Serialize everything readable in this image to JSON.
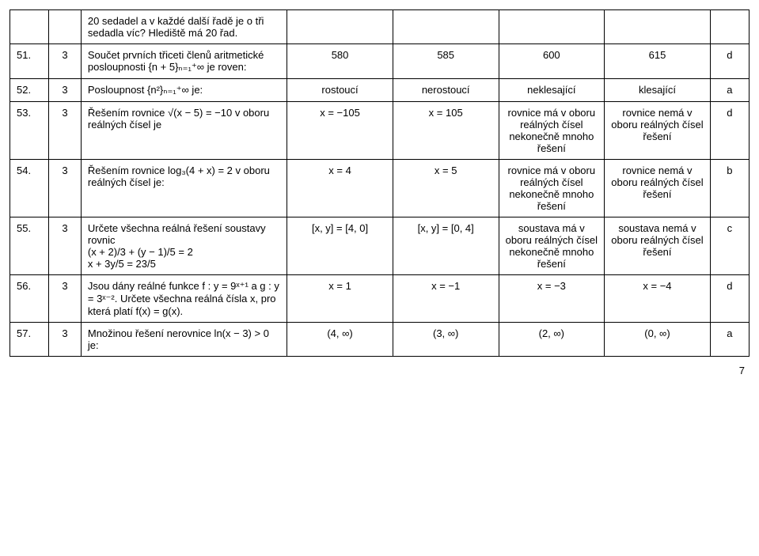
{
  "rows": [
    {
      "num": "",
      "pts": "",
      "question": "20 sedadel a v každé další řadě je o tři sedadla víc? Hlediště má 20 řad.",
      "a": "",
      "b": "",
      "c": "",
      "d": "",
      "ans": ""
    },
    {
      "num": "51.",
      "pts": "3",
      "question": "Součet prvních třiceti členů aritmetické posloupnosti {n + 5}ₙ₌₁⁺∞ je roven:",
      "a": "580",
      "b": "585",
      "c": "600",
      "d": "615",
      "ans": "d"
    },
    {
      "num": "52.",
      "pts": "3",
      "question": "Posloupnost {n²}ₙ₌₁⁺∞ je:",
      "a": "rostoucí",
      "b": "nerostoucí",
      "c": "neklesající",
      "d": "klesající",
      "ans": "a"
    },
    {
      "num": "53.",
      "pts": "3",
      "question": "Řešením rovnice √(x − 5) = −10 v oboru reálných čísel je",
      "a": "x = −105",
      "b": "x = 105",
      "c": "rovnice má v oboru reálných čísel nekonečně mnoho řešení",
      "d": "rovnice nemá v oboru reálných čísel řešení",
      "ans": "d"
    },
    {
      "num": "54.",
      "pts": "3",
      "question": "Řešením rovnice log₃(4 + x) = 2 v oboru reálných čísel je:",
      "a": "x = 4",
      "b": "x = 5",
      "c": "rovnice má v oboru reálných čísel nekonečně mnoho řešení",
      "d": "rovnice nemá v oboru reálných čísel řešení",
      "ans": "b"
    },
    {
      "num": "55.",
      "pts": "3",
      "question": "Určete všechna reálná řešení soustavy rovnic\n(x + 2)/3 + (y − 1)/5 = 2\nx + 3y/5 = 23/5",
      "a": "[x, y] = [4, 0]",
      "b": "[x, y] = [0, 4]",
      "c": "soustava má v oboru reálných čísel nekonečně mnoho řešení",
      "d": "soustava nemá v oboru reálných čísel řešení",
      "ans": "c"
    },
    {
      "num": "56.",
      "pts": "3",
      "question": "Jsou dány reálné funkce f : y = 9ˣ⁺¹ a g : y = 3ˣ⁻². Určete všechna reálná čísla x, pro která platí f(x) = g(x).",
      "a": "x = 1",
      "b": "x = −1",
      "c": "x = −3",
      "d": "x = −4",
      "ans": "d"
    },
    {
      "num": "57.",
      "pts": "3",
      "question": "Množinou řešení nerovnice ln(x − 3) > 0 je:",
      "a": "(4, ∞)",
      "b": "(3, ∞)",
      "c": "(2, ∞)",
      "d": "(0, ∞)",
      "ans": "a"
    }
  ],
  "pageNumber": "7"
}
